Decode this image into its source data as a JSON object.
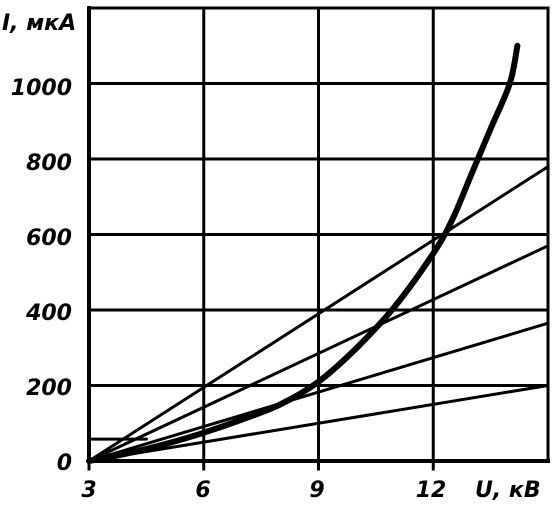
{
  "chart_data": {
    "type": "line",
    "xlabel": "U, кВ",
    "ylabel": "I, мкА",
    "xlim": [
      3,
      15
    ],
    "ylim": [
      0,
      1200
    ],
    "x_ticks": [
      "3",
      "6",
      "9",
      "12"
    ],
    "y_ticks": [
      "0",
      "200",
      "400",
      "600",
      "800",
      "1000"
    ],
    "grid": true,
    "series": [
      {
        "style": "thick",
        "x": [
          3,
          4,
          5,
          6,
          7,
          8,
          9,
          10,
          11,
          12,
          12.5,
          13,
          13.5,
          14,
          14.2
        ],
        "y": [
          0,
          20,
          45,
          75,
          110,
          150,
          210,
          300,
          410,
          550,
          640,
          760,
          880,
          1000,
          1100
        ]
      },
      {
        "style": "thin",
        "x": [
          3,
          15
        ],
        "y": [
          0,
          780
        ]
      },
      {
        "style": "thin",
        "x": [
          3,
          15
        ],
        "y": [
          0,
          570
        ]
      },
      {
        "style": "thin",
        "x": [
          3,
          15
        ],
        "y": [
          0,
          365
        ]
      },
      {
        "style": "thin",
        "x": [
          3,
          15
        ],
        "y": [
          0,
          200
        ]
      },
      {
        "style": "thin",
        "x": [
          3,
          4.5
        ],
        "y": [
          58,
          58
        ]
      }
    ]
  }
}
